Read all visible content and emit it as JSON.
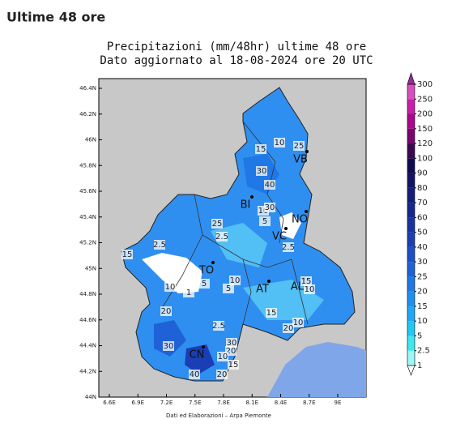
{
  "header": {
    "title": "Ultime 48 ore"
  },
  "map": {
    "title_lines": [
      "Precipitazioni (mm/48hr) ultime 48 ore",
      "Dato aggiornato al 18-08-2024 ore 20 UTC"
    ],
    "lat_labels": [
      "46.4N",
      "46.2N",
      "46N",
      "45.8N",
      "45.6N",
      "45.4N",
      "45.2N",
      "45N",
      "44.8N",
      "44.6N",
      "44.4N",
      "44.2N",
      "44N"
    ],
    "lon_labels": [
      "6.6E",
      "6.9E",
      "7.2E",
      "7.5E",
      "7.8E",
      "8.1E",
      "8.4E",
      "8.7E",
      "9E"
    ],
    "provinces": [
      "VB",
      "BI",
      "NO",
      "VC",
      "TO",
      "AT",
      "AL",
      "CN"
    ],
    "station_values": [
      10,
      15,
      25,
      30,
      40,
      10,
      30,
      5,
      25,
      2.5,
      2.5,
      2.5,
      15,
      10,
      5,
      5,
      10,
      1,
      15,
      10,
      15,
      20,
      10,
      20,
      2.5,
      30,
      30,
      20,
      10,
      15,
      40,
      20
    ],
    "footer": "Dati ed Elaborazioni – Arpa Piemonte"
  },
  "legend": {
    "levels": [
      1,
      2.5,
      5,
      10,
      15,
      20,
      25,
      30,
      40,
      50,
      60,
      70,
      80,
      90,
      100,
      120,
      150,
      200,
      250,
      300
    ],
    "colors": [
      "#ffffff",
      "#9ef7f7",
      "#3ee8f0",
      "#1fc8f5",
      "#1fa8f5",
      "#1f90f0",
      "#1f78e6",
      "#1f62d8",
      "#1c4ec6",
      "#1a3eb4",
      "#1832a0",
      "#16288c",
      "#141e78",
      "#121464",
      "#100a50",
      "#3c0850",
      "#78066e",
      "#a8088c",
      "#c81ea8",
      "#d850c0",
      "#9a2a9a"
    ]
  }
}
